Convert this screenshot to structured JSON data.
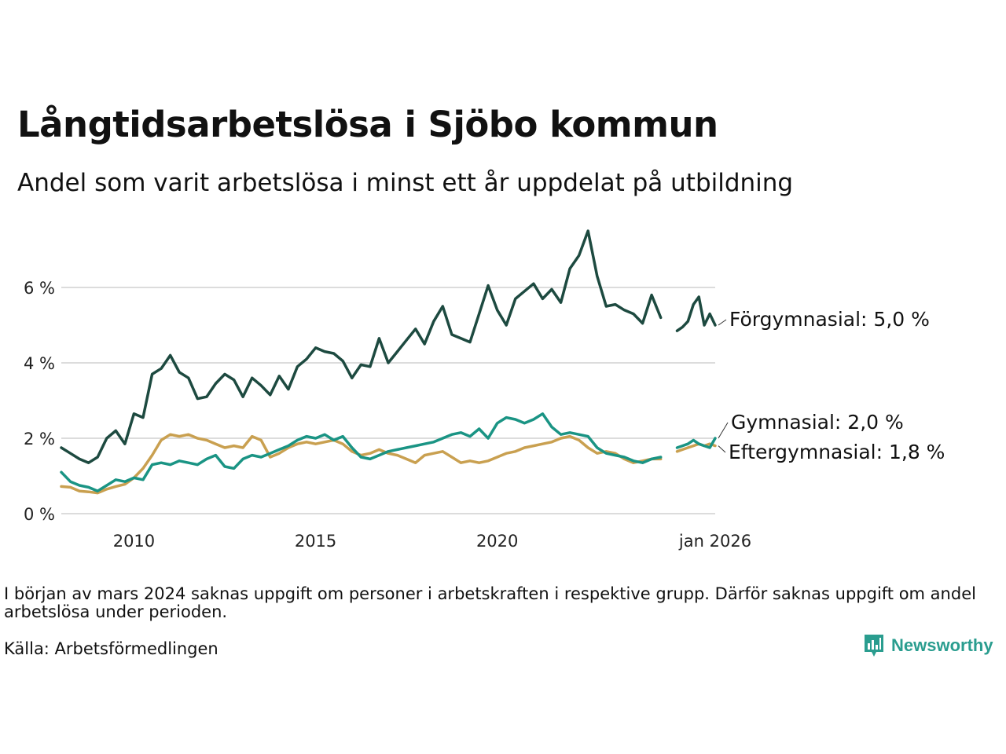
{
  "title": "Långtidsarbetslösa i Sjöbo kommun",
  "subtitle": "Andel som varit arbetslösa i minst ett år uppdelat på utbildning",
  "note": "I början av mars 2024 saknas uppgift om personer i arbetskraften i respektive grupp. Därför saknas uppgift om andel arbetslösa under perioden.",
  "source": "Källa: Arbetsförmedlingen",
  "logo_text": "Newsworthy",
  "chart_data": {
    "type": "line",
    "title": "Långtidsarbetslösa i Sjöbo kommun",
    "ylabel": "",
    "xlabel": "",
    "xlim": [
      2008.0,
      2026.0
    ],
    "ylim": [
      0,
      7.6
    ],
    "y_ticks": [
      {
        "value": 0,
        "label": "0 %"
      },
      {
        "value": 2,
        "label": "2 %"
      },
      {
        "value": 4,
        "label": "4 %"
      },
      {
        "value": 6,
        "label": "6 %"
      }
    ],
    "x_ticks": [
      {
        "value": 2010,
        "label": "2010"
      },
      {
        "value": 2015,
        "label": "2015"
      },
      {
        "value": 2020,
        "label": "2020"
      },
      {
        "value": 2026,
        "label": "jan 2026"
      }
    ],
    "gap": [
      2023.75,
      2024.42
    ],
    "series": [
      {
        "name": "Förgymnasial",
        "end_label": "Förgymnasial: 5,0 %",
        "color": "#1d4a40",
        "points": [
          [
            2008.0,
            1.75
          ],
          [
            2008.25,
            1.6
          ],
          [
            2008.5,
            1.45
          ],
          [
            2008.75,
            1.35
          ],
          [
            2009.0,
            1.5
          ],
          [
            2009.25,
            2.0
          ],
          [
            2009.5,
            2.2
          ],
          [
            2009.75,
            1.85
          ],
          [
            2010.0,
            2.65
          ],
          [
            2010.25,
            2.55
          ],
          [
            2010.5,
            3.7
          ],
          [
            2010.75,
            3.85
          ],
          [
            2011.0,
            4.2
          ],
          [
            2011.25,
            3.75
          ],
          [
            2011.5,
            3.6
          ],
          [
            2011.75,
            3.05
          ],
          [
            2012.0,
            3.1
          ],
          [
            2012.25,
            3.45
          ],
          [
            2012.5,
            3.7
          ],
          [
            2012.75,
            3.55
          ],
          [
            2013.0,
            3.1
          ],
          [
            2013.25,
            3.6
          ],
          [
            2013.5,
            3.4
          ],
          [
            2013.75,
            3.15
          ],
          [
            2014.0,
            3.65
          ],
          [
            2014.25,
            3.3
          ],
          [
            2014.5,
            3.9
          ],
          [
            2014.75,
            4.1
          ],
          [
            2015.0,
            4.4
          ],
          [
            2015.25,
            4.3
          ],
          [
            2015.5,
            4.25
          ],
          [
            2015.75,
            4.05
          ],
          [
            2016.0,
            3.6
          ],
          [
            2016.25,
            3.95
          ],
          [
            2016.5,
            3.9
          ],
          [
            2016.75,
            4.65
          ],
          [
            2017.0,
            4.0
          ],
          [
            2017.25,
            4.3
          ],
          [
            2017.5,
            4.6
          ],
          [
            2017.75,
            4.9
          ],
          [
            2018.0,
            4.5
          ],
          [
            2018.25,
            5.1
          ],
          [
            2018.5,
            5.5
          ],
          [
            2018.75,
            4.75
          ],
          [
            2019.0,
            4.65
          ],
          [
            2019.25,
            4.55
          ],
          [
            2019.5,
            5.3
          ],
          [
            2019.75,
            6.05
          ],
          [
            2020.0,
            5.4
          ],
          [
            2020.25,
            5.0
          ],
          [
            2020.5,
            5.7
          ],
          [
            2020.75,
            5.9
          ],
          [
            2021.0,
            6.1
          ],
          [
            2021.25,
            5.7
          ],
          [
            2021.5,
            5.95
          ],
          [
            2021.75,
            5.6
          ],
          [
            2022.0,
            6.5
          ],
          [
            2022.25,
            6.85
          ],
          [
            2022.5,
            7.5
          ],
          [
            2022.75,
            6.3
          ],
          [
            2023.0,
            5.5
          ],
          [
            2023.25,
            5.55
          ],
          [
            2023.5,
            5.4
          ],
          [
            2023.75,
            5.3
          ],
          [
            2024.0,
            5.05
          ],
          [
            2024.25,
            5.8
          ],
          [
            2024.5,
            5.2
          ],
          [
            2024.95,
            4.85
          ],
          [
            2025.1,
            4.95
          ],
          [
            2025.25,
            5.1
          ],
          [
            2025.4,
            5.55
          ],
          [
            2025.55,
            5.75
          ],
          [
            2025.7,
            5.0
          ],
          [
            2025.85,
            5.3
          ],
          [
            2026.0,
            5.0
          ]
        ]
      },
      {
        "name": "Gymnasial",
        "end_label": "Gymnasial: 2,0 %",
        "color": "#1a9484",
        "points": [
          [
            2008.0,
            1.1
          ],
          [
            2008.25,
            0.85
          ],
          [
            2008.5,
            0.75
          ],
          [
            2008.75,
            0.7
          ],
          [
            2009.0,
            0.6
          ],
          [
            2009.25,
            0.75
          ],
          [
            2009.5,
            0.9
          ],
          [
            2009.75,
            0.85
          ],
          [
            2010.0,
            0.95
          ],
          [
            2010.25,
            0.9
          ],
          [
            2010.5,
            1.3
          ],
          [
            2010.75,
            1.35
          ],
          [
            2011.0,
            1.3
          ],
          [
            2011.25,
            1.4
          ],
          [
            2011.5,
            1.35
          ],
          [
            2011.75,
            1.3
          ],
          [
            2012.0,
            1.45
          ],
          [
            2012.25,
            1.55
          ],
          [
            2012.5,
            1.25
          ],
          [
            2012.75,
            1.2
          ],
          [
            2013.0,
            1.45
          ],
          [
            2013.25,
            1.55
          ],
          [
            2013.5,
            1.5
          ],
          [
            2013.75,
            1.6
          ],
          [
            2014.0,
            1.7
          ],
          [
            2014.25,
            1.8
          ],
          [
            2014.5,
            1.95
          ],
          [
            2014.75,
            2.05
          ],
          [
            2015.0,
            2.0
          ],
          [
            2015.25,
            2.1
          ],
          [
            2015.5,
            1.95
          ],
          [
            2015.75,
            2.05
          ],
          [
            2016.0,
            1.75
          ],
          [
            2016.25,
            1.5
          ],
          [
            2016.5,
            1.45
          ],
          [
            2016.75,
            1.55
          ],
          [
            2017.0,
            1.65
          ],
          [
            2017.25,
            1.7
          ],
          [
            2017.5,
            1.75
          ],
          [
            2017.75,
            1.8
          ],
          [
            2018.0,
            1.85
          ],
          [
            2018.25,
            1.9
          ],
          [
            2018.5,
            2.0
          ],
          [
            2018.75,
            2.1
          ],
          [
            2019.0,
            2.15
          ],
          [
            2019.25,
            2.05
          ],
          [
            2019.5,
            2.25
          ],
          [
            2019.75,
            2.0
          ],
          [
            2020.0,
            2.4
          ],
          [
            2020.25,
            2.55
          ],
          [
            2020.5,
            2.5
          ],
          [
            2020.75,
            2.4
          ],
          [
            2021.0,
            2.5
          ],
          [
            2021.25,
            2.65
          ],
          [
            2021.5,
            2.3
          ],
          [
            2021.75,
            2.1
          ],
          [
            2022.0,
            2.15
          ],
          [
            2022.25,
            2.1
          ],
          [
            2022.5,
            2.05
          ],
          [
            2022.75,
            1.75
          ],
          [
            2023.0,
            1.6
          ],
          [
            2023.25,
            1.55
          ],
          [
            2023.5,
            1.5
          ],
          [
            2023.75,
            1.4
          ],
          [
            2024.0,
            1.35
          ],
          [
            2024.25,
            1.45
          ],
          [
            2024.5,
            1.5
          ],
          [
            2024.95,
            1.75
          ],
          [
            2025.1,
            1.8
          ],
          [
            2025.25,
            1.85
          ],
          [
            2025.4,
            1.95
          ],
          [
            2025.55,
            1.85
          ],
          [
            2025.7,
            1.8
          ],
          [
            2025.85,
            1.75
          ],
          [
            2026.0,
            2.0
          ]
        ]
      },
      {
        "name": "Eftergymnasial",
        "end_label": "Eftergymnasial: 1,8 %",
        "color": "#c9a050",
        "points": [
          [
            2008.0,
            0.72
          ],
          [
            2008.25,
            0.7
          ],
          [
            2008.5,
            0.6
          ],
          [
            2008.75,
            0.58
          ],
          [
            2009.0,
            0.55
          ],
          [
            2009.25,
            0.65
          ],
          [
            2009.5,
            0.72
          ],
          [
            2009.75,
            0.78
          ],
          [
            2010.0,
            0.95
          ],
          [
            2010.25,
            1.2
          ],
          [
            2010.5,
            1.55
          ],
          [
            2010.75,
            1.95
          ],
          [
            2011.0,
            2.1
          ],
          [
            2011.25,
            2.05
          ],
          [
            2011.5,
            2.1
          ],
          [
            2011.75,
            2.0
          ],
          [
            2012.0,
            1.95
          ],
          [
            2012.25,
            1.85
          ],
          [
            2012.5,
            1.75
          ],
          [
            2012.75,
            1.8
          ],
          [
            2013.0,
            1.75
          ],
          [
            2013.25,
            2.05
          ],
          [
            2013.5,
            1.95
          ],
          [
            2013.75,
            1.5
          ],
          [
            2014.0,
            1.6
          ],
          [
            2014.25,
            1.75
          ],
          [
            2014.5,
            1.85
          ],
          [
            2014.75,
            1.9
          ],
          [
            2015.0,
            1.85
          ],
          [
            2015.25,
            1.9
          ],
          [
            2015.5,
            1.95
          ],
          [
            2015.75,
            1.85
          ],
          [
            2016.0,
            1.65
          ],
          [
            2016.25,
            1.55
          ],
          [
            2016.5,
            1.6
          ],
          [
            2016.75,
            1.7
          ],
          [
            2017.0,
            1.6
          ],
          [
            2017.25,
            1.55
          ],
          [
            2017.5,
            1.45
          ],
          [
            2017.75,
            1.35
          ],
          [
            2018.0,
            1.55
          ],
          [
            2018.25,
            1.6
          ],
          [
            2018.5,
            1.65
          ],
          [
            2018.75,
            1.5
          ],
          [
            2019.0,
            1.35
          ],
          [
            2019.25,
            1.4
          ],
          [
            2019.5,
            1.35
          ],
          [
            2019.75,
            1.4
          ],
          [
            2020.0,
            1.5
          ],
          [
            2020.25,
            1.6
          ],
          [
            2020.5,
            1.65
          ],
          [
            2020.75,
            1.75
          ],
          [
            2021.0,
            1.8
          ],
          [
            2021.25,
            1.85
          ],
          [
            2021.5,
            1.9
          ],
          [
            2021.75,
            2.0
          ],
          [
            2022.0,
            2.05
          ],
          [
            2022.25,
            1.95
          ],
          [
            2022.5,
            1.75
          ],
          [
            2022.75,
            1.6
          ],
          [
            2023.0,
            1.65
          ],
          [
            2023.25,
            1.6
          ],
          [
            2023.5,
            1.45
          ],
          [
            2023.75,
            1.35
          ],
          [
            2024.0,
            1.4
          ],
          [
            2024.25,
            1.45
          ],
          [
            2024.5,
            1.45
          ],
          [
            2024.95,
            1.65
          ],
          [
            2025.1,
            1.7
          ],
          [
            2025.25,
            1.75
          ],
          [
            2025.4,
            1.8
          ],
          [
            2025.55,
            1.85
          ],
          [
            2025.7,
            1.8
          ],
          [
            2025.85,
            1.85
          ],
          [
            2026.0,
            1.8
          ]
        ]
      }
    ]
  }
}
